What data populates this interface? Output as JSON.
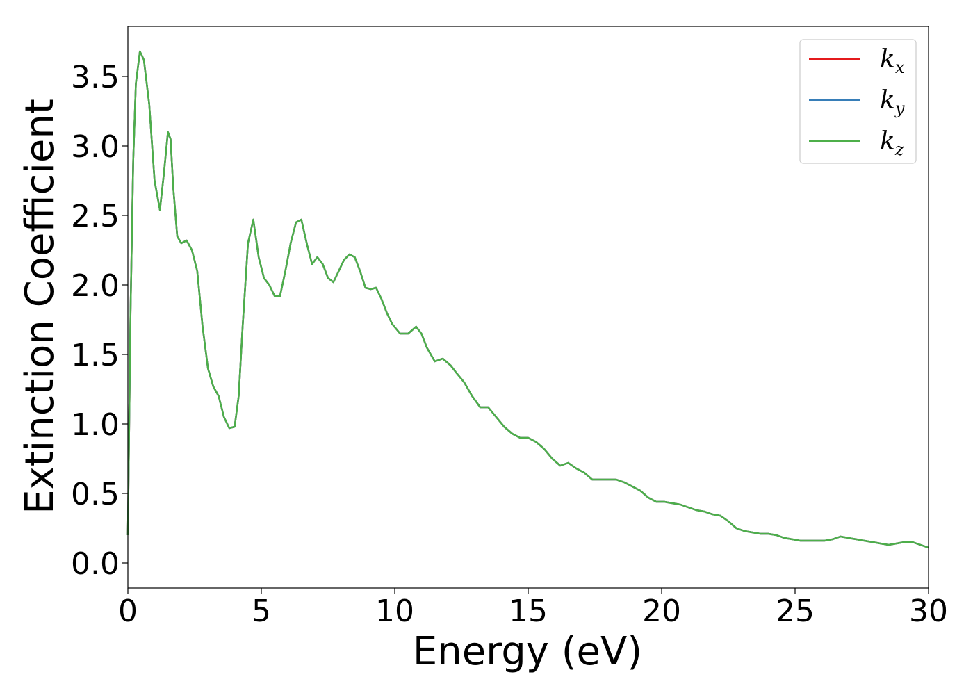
{
  "chart_data": {
    "type": "line",
    "xlabel": "Energy (eV)",
    "ylabel": "Extinction Coefficient",
    "xlim": [
      0,
      30
    ],
    "ylim": [
      -0.18,
      3.86
    ],
    "xticks": [
      0,
      5,
      10,
      15,
      20,
      25,
      30
    ],
    "xtick_labels": [
      "0",
      "5",
      "10",
      "15",
      "20",
      "25",
      "30"
    ],
    "yticks": [
      0.0,
      0.5,
      1.0,
      1.5,
      2.0,
      2.5,
      3.0,
      3.5
    ],
    "ytick_labels": [
      "0.0",
      "0.5",
      "1.0",
      "1.5",
      "2.0",
      "2.5",
      "3.0",
      "3.5"
    ],
    "grid": false,
    "legend_position": "top-right",
    "x": [
      0.0,
      0.1,
      0.2,
      0.3,
      0.45,
      0.6,
      0.8,
      1.0,
      1.2,
      1.35,
      1.5,
      1.6,
      1.7,
      1.85,
      2.0,
      2.2,
      2.4,
      2.6,
      2.8,
      3.0,
      3.2,
      3.4,
      3.6,
      3.8,
      4.0,
      4.15,
      4.3,
      4.5,
      4.7,
      4.9,
      5.1,
      5.3,
      5.5,
      5.7,
      5.9,
      6.1,
      6.3,
      6.5,
      6.7,
      6.9,
      7.1,
      7.3,
      7.5,
      7.7,
      7.9,
      8.1,
      8.3,
      8.5,
      8.7,
      8.9,
      9.1,
      9.3,
      9.5,
      9.7,
      9.9,
      10.2,
      10.5,
      10.8,
      11.0,
      11.2,
      11.5,
      11.8,
      12.1,
      12.3,
      12.6,
      12.9,
      13.2,
      13.5,
      13.8,
      14.1,
      14.4,
      14.7,
      15.0,
      15.3,
      15.6,
      15.9,
      16.2,
      16.5,
      16.8,
      17.1,
      17.4,
      17.7,
      18.0,
      18.3,
      18.6,
      18.9,
      19.2,
      19.5,
      19.8,
      20.1,
      20.4,
      20.7,
      21.0,
      21.3,
      21.6,
      21.9,
      22.2,
      22.5,
      22.8,
      23.1,
      23.4,
      23.7,
      24.0,
      24.3,
      24.6,
      24.9,
      25.2,
      25.5,
      25.8,
      26.1,
      26.4,
      26.7,
      27.0,
      27.3,
      27.6,
      27.9,
      28.2,
      28.5,
      28.8,
      29.1,
      29.4,
      29.7,
      30.0
    ],
    "series": [
      {
        "name": "k_x",
        "label_base": "k",
        "label_sub": "x",
        "color": "#e41a1c"
      },
      {
        "name": "k_y",
        "label_base": "k",
        "label_sub": "y",
        "color": "#377eb8"
      },
      {
        "name": "k_z",
        "label_base": "k",
        "label_sub": "z",
        "color": "#4daf4a"
      }
    ],
    "values": [
      0.2,
      1.8,
      2.9,
      3.45,
      3.68,
      3.62,
      3.3,
      2.75,
      2.54,
      2.8,
      3.1,
      3.05,
      2.7,
      2.35,
      2.3,
      2.32,
      2.25,
      2.1,
      1.7,
      1.4,
      1.27,
      1.2,
      1.05,
      0.97,
      0.98,
      1.2,
      1.7,
      2.3,
      2.47,
      2.2,
      2.05,
      2.0,
      1.92,
      1.92,
      2.1,
      2.3,
      2.45,
      2.47,
      2.3,
      2.15,
      2.2,
      2.15,
      2.05,
      2.02,
      2.1,
      2.18,
      2.22,
      2.2,
      2.1,
      1.98,
      1.97,
      1.98,
      1.9,
      1.8,
      1.72,
      1.65,
      1.65,
      1.7,
      1.65,
      1.55,
      1.45,
      1.47,
      1.42,
      1.37,
      1.3,
      1.2,
      1.12,
      1.12,
      1.05,
      0.98,
      0.93,
      0.9,
      0.9,
      0.87,
      0.82,
      0.75,
      0.7,
      0.72,
      0.68,
      0.65,
      0.6,
      0.6,
      0.6,
      0.6,
      0.58,
      0.55,
      0.52,
      0.47,
      0.44,
      0.44,
      0.43,
      0.42,
      0.4,
      0.38,
      0.37,
      0.35,
      0.34,
      0.3,
      0.25,
      0.23,
      0.22,
      0.21,
      0.21,
      0.2,
      0.18,
      0.17,
      0.16,
      0.16,
      0.16,
      0.16,
      0.17,
      0.19,
      0.18,
      0.17,
      0.16,
      0.15,
      0.14,
      0.13,
      0.14,
      0.15,
      0.15,
      0.13,
      0.11
    ]
  }
}
